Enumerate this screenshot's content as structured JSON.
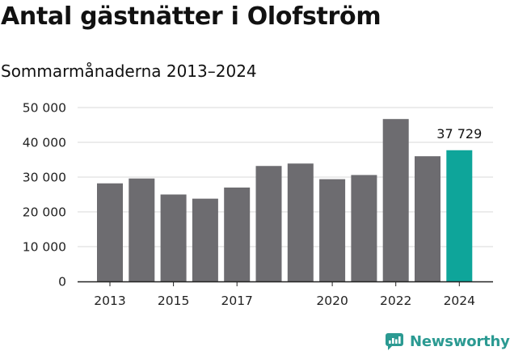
{
  "chart_data": {
    "type": "bar",
    "title": "Antal gästnätter i Olofström",
    "subtitle": "Sommarmånaderna 2013–2024",
    "categories": [
      "2013",
      "2014",
      "2015",
      "2016",
      "2017",
      "2018",
      "2019",
      "2020",
      "2021",
      "2022",
      "2023",
      "2024"
    ],
    "values": [
      28200,
      29600,
      25000,
      23800,
      27000,
      33200,
      33900,
      29400,
      30600,
      46700,
      36000,
      37729
    ],
    "x_tick_labels": [
      "2013",
      "",
      "2015",
      "",
      "2017",
      "",
      "",
      "2020",
      "",
      "2022",
      "",
      "2024"
    ],
    "y_ticks": [
      0,
      10000,
      20000,
      30000,
      40000,
      50000
    ],
    "y_tick_labels": [
      "0",
      "10 000",
      "20 000",
      "30 000",
      "40 000",
      "50 000"
    ],
    "ylim": [
      0,
      50000
    ],
    "grid": true,
    "highlight": {
      "category": "2024",
      "label": "37 729"
    },
    "colors": {
      "bar": "#6d6c70",
      "highlight": "#0ea59a",
      "grid": "#d9d9d9",
      "axis": "#222222"
    }
  },
  "brand": {
    "name": "Newsworthy",
    "icon": "newsworthy-logo-icon",
    "color": "#2b9a92"
  }
}
